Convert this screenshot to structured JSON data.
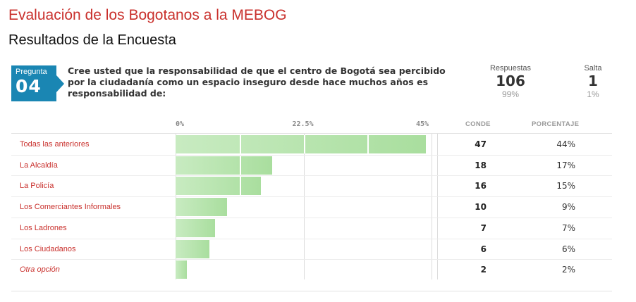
{
  "header": {
    "survey_title": "Evaluación de los Bogotanos a la MEBOG",
    "results_title": "Resultados de la Encuesta"
  },
  "question": {
    "badge_label": "Pregunta",
    "number": "04",
    "text": "Cree usted que la responsabilidad de que el centro de Bogotá sea percibido por la ciudadanía como un espacio inseguro desde hace muchos años es responsabilidad de:"
  },
  "stats": {
    "responses_label": "Respuestas",
    "responses_value": "106",
    "responses_pct": "99%",
    "skipped_label": "Salta",
    "skipped_value": "1",
    "skipped_pct": "1%"
  },
  "colors": {
    "title": "#c9302c",
    "badge": "#1a86b3",
    "bar_light": "#c8ebc1",
    "bar_dark": "#a9de9e"
  },
  "chart_data": {
    "type": "bar",
    "orientation": "horizontal",
    "title": "",
    "xlabel": "",
    "ylabel": "",
    "xlim": [
      0,
      45
    ],
    "ticks": [
      {
        "value": 0,
        "label": "0%"
      },
      {
        "value": 22.5,
        "label": "22.5%"
      },
      {
        "value": 45,
        "label": "45%"
      }
    ],
    "column_headers": {
      "count": "CONDE",
      "percent": "PORCENTAJE"
    },
    "categories": [
      "Todas las anteriores",
      "La Alcaldía",
      "La Policía",
      "Los Comerciantes Informales",
      "Los Ladrones",
      "Los Ciudadanos",
      "Otra opción"
    ],
    "counts": [
      47,
      18,
      16,
      10,
      7,
      6,
      2
    ],
    "values": [
      44,
      17,
      15,
      9,
      7,
      6,
      2
    ],
    "count_labels": [
      "47",
      "18",
      "16",
      "10",
      "7",
      "6",
      "2"
    ],
    "percent_labels": [
      "44%",
      "17%",
      "15%",
      "9%",
      "7%",
      "6%",
      "2%"
    ],
    "italic_categories": [
      "Otra opción"
    ],
    "grid": true
  }
}
